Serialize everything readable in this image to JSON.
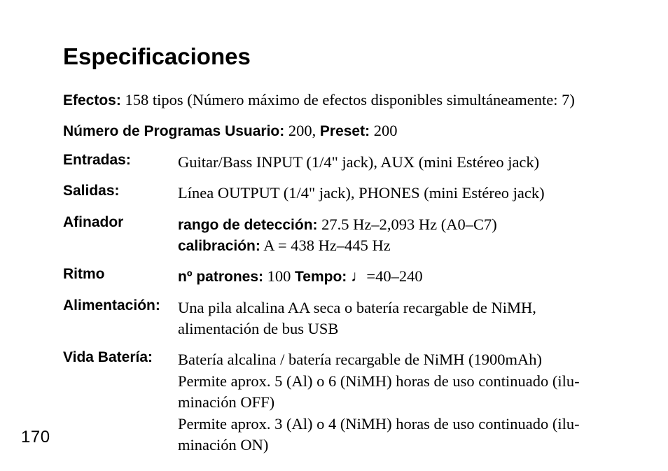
{
  "title": "Especificaciones",
  "effects": {
    "label": "Efectos:",
    "value": " 158 tipos (Número máximo de efectos disponibles simultáneamente: 7)"
  },
  "programs": {
    "user_label": "Número de Programas Usuario:",
    "user_value": " 200, ",
    "preset_label": "Preset:",
    "preset_value": " 200"
  },
  "inputs": {
    "label": "Entradas:",
    "value": "Guitar/Bass INPUT (1/4\" jack), AUX (mini Estéreo jack)"
  },
  "outputs": {
    "label": "Salidas:",
    "value": "Línea OUTPUT (1/4\" jack), PHONES (mini Estéreo jack)"
  },
  "tuner": {
    "label": "Afinador",
    "range_label": "rango de detección:",
    "range_value": " 27.5 Hz–2,093 Hz (A0–C7)",
    "cal_label": "calibración:",
    "cal_value": " A = 438 Hz–445 Hz"
  },
  "rhythm": {
    "label": "Ritmo",
    "patterns_label": "nº patrones:",
    "patterns_value": " 100 ",
    "tempo_label": "Tempo:",
    "tempo_value": " ♩=40–240"
  },
  "power": {
    "label": "Alimentación:",
    "value": "Una pila alcalina AA seca o batería recargable de NiMH, alimentación de bus USB"
  },
  "battery": {
    "label": "Vida Batería:",
    "line1": "Batería alcalina / batería recargable de NiMH (1900mAh)",
    "line2": "Permite aprox. 5 (Al) o 6 (NiMH) horas de uso continuado (ilu-minación OFF)",
    "line3": "Permite aprox. 3 (Al) o 4 (NiMH) horas de uso continuado (ilu-minación ON)"
  },
  "page_number": "170"
}
